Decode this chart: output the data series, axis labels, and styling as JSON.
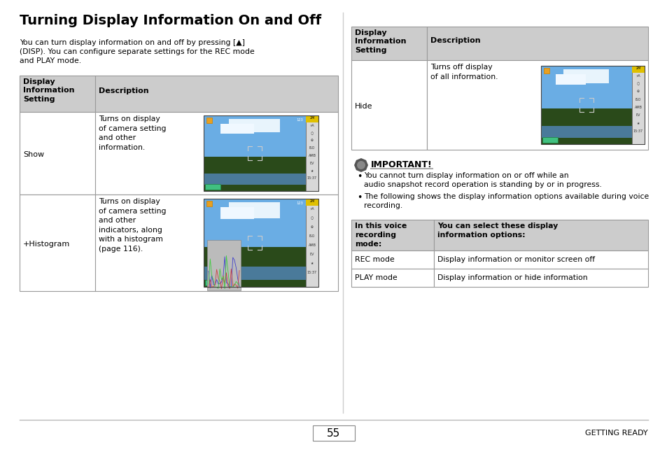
{
  "title": "Turning Display Information On and Off",
  "bg_color": "#ffffff",
  "page_number": "55",
  "footer_right": "GETTING READY",
  "intro_line1": "You can turn display information on and off by pressing [▲]",
  "intro_line2": "(DISP). You can configure separate settings for the REC mode",
  "intro_line3": "and PLAY mode.",
  "header_bg": "#cccccc",
  "table_border": "#999999",
  "important_title": "IMPORTANT!",
  "important_bullets": [
    "You cannot turn display information on or off while an audio snapshot record operation is standing by or in progress.",
    "The following shows the display information options available during voice recording."
  ],
  "voice_header_col1": "In this voice\nrecording\nmode:",
  "voice_header_col2": "You can select these display\ninformation options:",
  "voice_rows": [
    [
      "REC mode",
      "Display information or monitor screen off"
    ],
    [
      "PLAY mode",
      "Display information or hide information"
    ]
  ],
  "sky_color": "#6aade4",
  "mountain_color": "#2a4a1a",
  "tree_color": "#3a5a20",
  "water_color": "#4a7a9a",
  "cam_border": "#444444",
  "cam_sidebar_bg": "#dddddd",
  "orange_sq": "#e8a020",
  "green_bar": "#40c080",
  "hist_box_bg": "#cccccc"
}
